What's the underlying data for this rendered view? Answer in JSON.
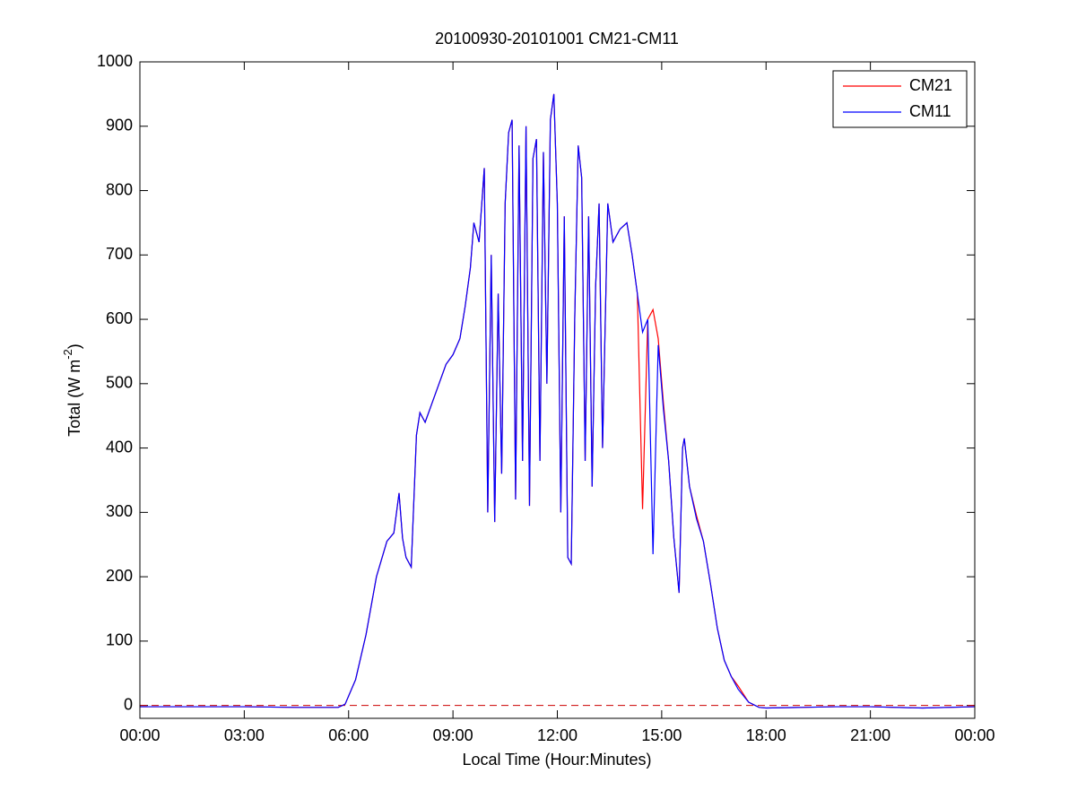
{
  "chart_data": {
    "type": "line",
    "title": "20100930-20101001 CM21-CM11",
    "x_label": "Local Time (Hour:Minutes)",
    "y_label": {
      "text": "Total (W m",
      "superscript": "-2",
      "end": ")"
    },
    "x": [
      0,
      3,
      4.5,
      5.7,
      5.9,
      6.2,
      6.5,
      6.8,
      7.1,
      7.3,
      7.45,
      7.55,
      7.65,
      7.8,
      7.95,
      8.05,
      8.2,
      8.4,
      8.6,
      8.8,
      9.0,
      9.2,
      9.35,
      9.5,
      9.6,
      9.75,
      9.9,
      10.0,
      10.1,
      10.2,
      10.3,
      10.4,
      10.5,
      10.6,
      10.7,
      10.8,
      10.9,
      11.0,
      11.1,
      11.2,
      11.3,
      11.4,
      11.5,
      11.6,
      11.7,
      11.8,
      11.9,
      12.0,
      12.1,
      12.2,
      12.3,
      12.4,
      12.5,
      12.6,
      12.7,
      12.8,
      12.9,
      13.0,
      13.1,
      13.2,
      13.3,
      13.45,
      13.6,
      13.8,
      14.0,
      14.15,
      14.3,
      14.45,
      14.6,
      14.75,
      14.9,
      15.05,
      15.2,
      15.35,
      15.5,
      15.6,
      15.65,
      15.8,
      16.0,
      16.2,
      16.4,
      16.6,
      16.8,
      17.0,
      17.2,
      17.5,
      17.8,
      18.0,
      19.0,
      20.0,
      21.0,
      22.5,
      24
    ],
    "series": [
      {
        "name": "CM21",
        "color": "#ff0000",
        "values": [
          -2,
          -2,
          -3,
          -3,
          2,
          40,
          110,
          200,
          255,
          268,
          330,
          260,
          230,
          215,
          420,
          455,
          440,
          470,
          500,
          530,
          545,
          570,
          620,
          680,
          750,
          720,
          835,
          300,
          700,
          285,
          640,
          360,
          780,
          890,
          910,
          320,
          870,
          380,
          900,
          310,
          850,
          880,
          380,
          860,
          500,
          910,
          950,
          780,
          300,
          760,
          230,
          220,
          600,
          870,
          820,
          380,
          760,
          340,
          650,
          780,
          400,
          780,
          720,
          740,
          750,
          700,
          640,
          305,
          600,
          615,
          570,
          470,
          380,
          260,
          175,
          400,
          415,
          340,
          295,
          255,
          190,
          120,
          70,
          45,
          30,
          5,
          -3,
          -4,
          -3,
          -2,
          -2,
          -4,
          -2
        ]
      },
      {
        "name": "CM11",
        "color": "#0000ff",
        "values": [
          -2,
          -2,
          -3,
          -3,
          2,
          40,
          110,
          200,
          255,
          268,
          330,
          260,
          230,
          215,
          420,
          455,
          440,
          470,
          500,
          530,
          545,
          570,
          620,
          680,
          750,
          720,
          835,
          300,
          700,
          285,
          640,
          360,
          780,
          890,
          910,
          320,
          870,
          380,
          900,
          310,
          850,
          880,
          380,
          860,
          500,
          910,
          950,
          780,
          300,
          760,
          230,
          220,
          600,
          870,
          820,
          380,
          760,
          340,
          650,
          780,
          400,
          780,
          720,
          740,
          750,
          700,
          640,
          580,
          600,
          235,
          560,
          460,
          380,
          260,
          175,
          400,
          415,
          340,
          290,
          255,
          190,
          120,
          70,
          45,
          25,
          5,
          -3,
          -4,
          -3,
          -2,
          -2,
          -4,
          -2
        ]
      }
    ],
    "zero_line": {
      "value": 0,
      "color": "#cc0000"
    },
    "xlim": [
      0,
      24
    ],
    "xticks": [
      {
        "value": 0,
        "label": "00:00"
      },
      {
        "value": 3,
        "label": "03:00"
      },
      {
        "value": 6,
        "label": "06:00"
      },
      {
        "value": 9,
        "label": "09:00"
      },
      {
        "value": 12,
        "label": "12:00"
      },
      {
        "value": 15,
        "label": "15:00"
      },
      {
        "value": 18,
        "label": "18:00"
      },
      {
        "value": 21,
        "label": "21:00"
      },
      {
        "value": 24,
        "label": "00:00"
      }
    ],
    "ylim": [
      -20,
      1000
    ],
    "yticks": [
      0,
      100,
      200,
      300,
      400,
      500,
      600,
      700,
      800,
      900,
      1000
    ],
    "grid": false,
    "legend": "top-right"
  }
}
